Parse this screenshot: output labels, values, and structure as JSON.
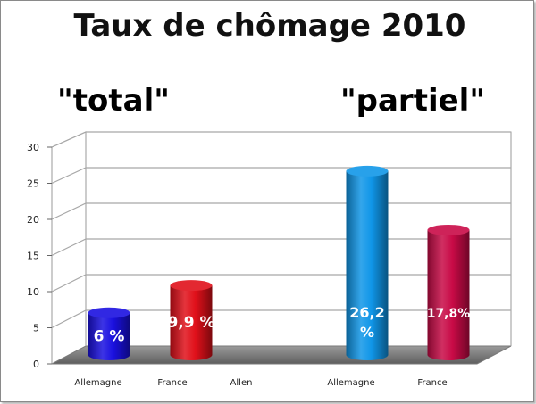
{
  "chart_data": {
    "type": "bar",
    "title": "Taux de chômage 2010",
    "ylim": [
      0,
      30
    ],
    "yticks": [
      "0",
      "5",
      "10",
      "15",
      "20",
      "25",
      "30"
    ],
    "grid": true,
    "groups": [
      {
        "name": "\"total\"",
        "bars": [
          {
            "category": "Allemagne",
            "value": 6,
            "label": "6 %",
            "color": "#1a10e0"
          },
          {
            "category": "France",
            "value": 9.9,
            "label": "9,9 %",
            "color": "#e0101a"
          }
        ]
      },
      {
        "name": "\"partiel\"",
        "bars": [
          {
            "category": "Allemagne",
            "value": 26.2,
            "label": "26,2 %",
            "color": "#1096e8"
          },
          {
            "category": "France",
            "value": 17.8,
            "label": "17,8%",
            "color": "#c80a46"
          }
        ]
      }
    ],
    "extra_category_label": "Allen"
  }
}
